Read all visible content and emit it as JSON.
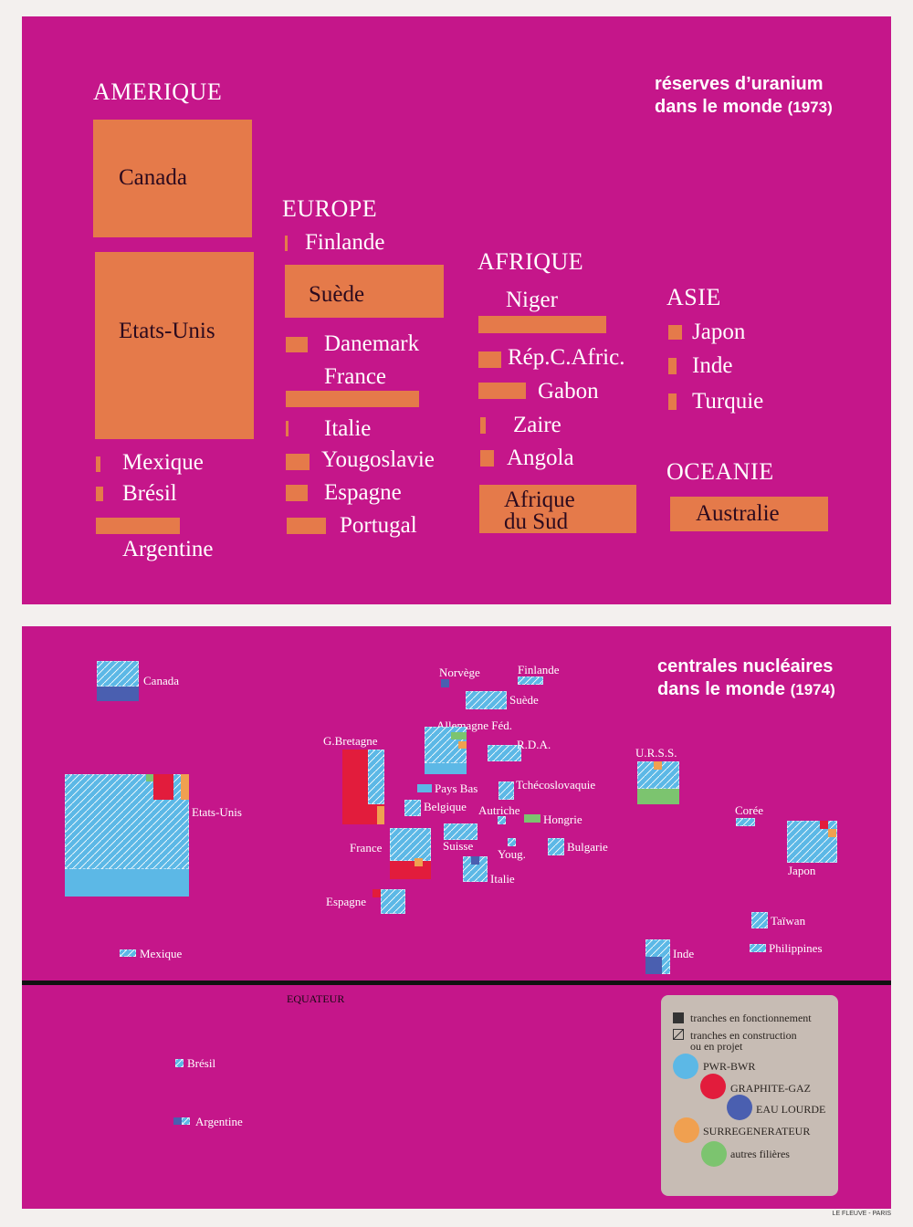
{
  "uranium": {
    "title_line1": "réserves d’uranium",
    "title_line2": "dans le monde",
    "year": "(1973)",
    "amerique": {
      "name": "AMERIQUE",
      "countries": [
        "Canada",
        "Etats-Unis",
        "Mexique",
        "Brésil",
        "Argentine"
      ]
    },
    "europe": {
      "name": "EUROPE",
      "countries": [
        "Finlande",
        "Suède",
        "Danemark",
        "France",
        "Italie",
        "Yougoslavie",
        "Espagne",
        "Portugal"
      ]
    },
    "afrique": {
      "name": "AFRIQUE",
      "countries": [
        "Niger",
        "Rép.C.Afric.",
        "Gabon",
        "Zaire",
        "Angola",
        "Afrique",
        "du Sud"
      ]
    },
    "asie": {
      "name": "ASIE",
      "countries": [
        "Japon",
        "Inde",
        "Turquie"
      ]
    },
    "oceanie": {
      "name": "OCEANIE",
      "countries": [
        "Australie"
      ]
    },
    "bar_color": "#e57a4a"
  },
  "nuclear": {
    "title_line1": "centrales nucléaires",
    "title_line2": "dans le monde",
    "year": "(1974)",
    "countries": [
      "Canada",
      "Etats-Unis",
      "Mexique",
      "Brésil",
      "Argentine",
      "Norvège",
      "Finlande",
      "Suède",
      "Allemagne Féd.",
      "R.D.A.",
      "G.Bretagne",
      "Pays Bas",
      "Belgique",
      "Tchécoslovaquie",
      "Autriche",
      "Hongrie",
      "Suisse",
      "France",
      "Youg.",
      "Bulgarie",
      "Italie",
      "Espagne",
      "U.R.S.S.",
      "Corée",
      "Japon",
      "Taïwan",
      "Inde",
      "Philippines"
    ],
    "equator": "EQUATEUR",
    "legend": {
      "operating": "tranches en fonctionnement",
      "construction_line1": "tranches en construction",
      "construction_line2": "ou en projet",
      "types": [
        {
          "label": "PWR-BWR",
          "color": "#5cb8e6"
        },
        {
          "label": "GRAPHITE-GAZ",
          "color": "#e21c3c"
        },
        {
          "label": "EAU LOURDE",
          "color": "#4a5fb0"
        },
        {
          "label": "SURREGENERATEUR",
          "color": "#f0a050"
        },
        {
          "label": "autres filières",
          "color": "#7cc46f"
        }
      ]
    }
  },
  "credit": "LE FLEUVE - PARIS"
}
